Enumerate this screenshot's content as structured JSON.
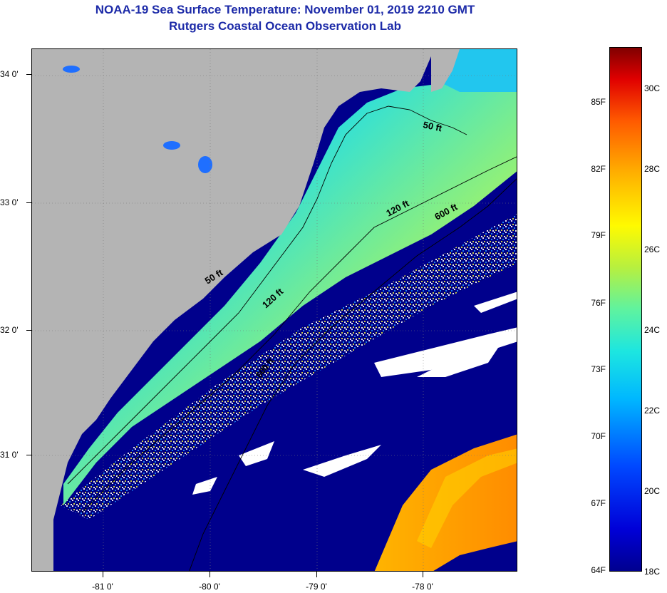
{
  "title": {
    "line1": "NOAA-19 Sea Surface Temperature:  November 01, 2019 2210 GMT",
    "line2": "Rutgers Coastal Ocean Observation Lab"
  },
  "map": {
    "lat_labels": [
      "34 0'",
      "33 0'",
      "32 0'",
      "31 0'"
    ],
    "lon_labels": [
      "-81 0'",
      "-80 0'",
      "-79 0'",
      "-78 0'"
    ],
    "contour_labels": {
      "c50_north": "50 ft",
      "c50_south": "50 ft",
      "c120_north": "120 ft",
      "c120_south": "120 ft",
      "c600_north": "600 ft",
      "c600_south": "600 ft"
    },
    "colors": {
      "land": "#b4b4b4",
      "deep_water": "#000080",
      "cloud": "#ffffff",
      "coastal_cyan": "#2fd6f2",
      "warm_yellow": "#e8e83a",
      "gulf_stream_orange": "#ffa000"
    }
  },
  "colorbar": {
    "fahrenheit_labels": [
      "85F",
      "82F",
      "79F",
      "76F",
      "73F",
      "70F",
      "67F",
      "64F"
    ],
    "celsius_labels": [
      "30C",
      "28C",
      "26C",
      "24C",
      "22C",
      "20C",
      "18C"
    ]
  }
}
